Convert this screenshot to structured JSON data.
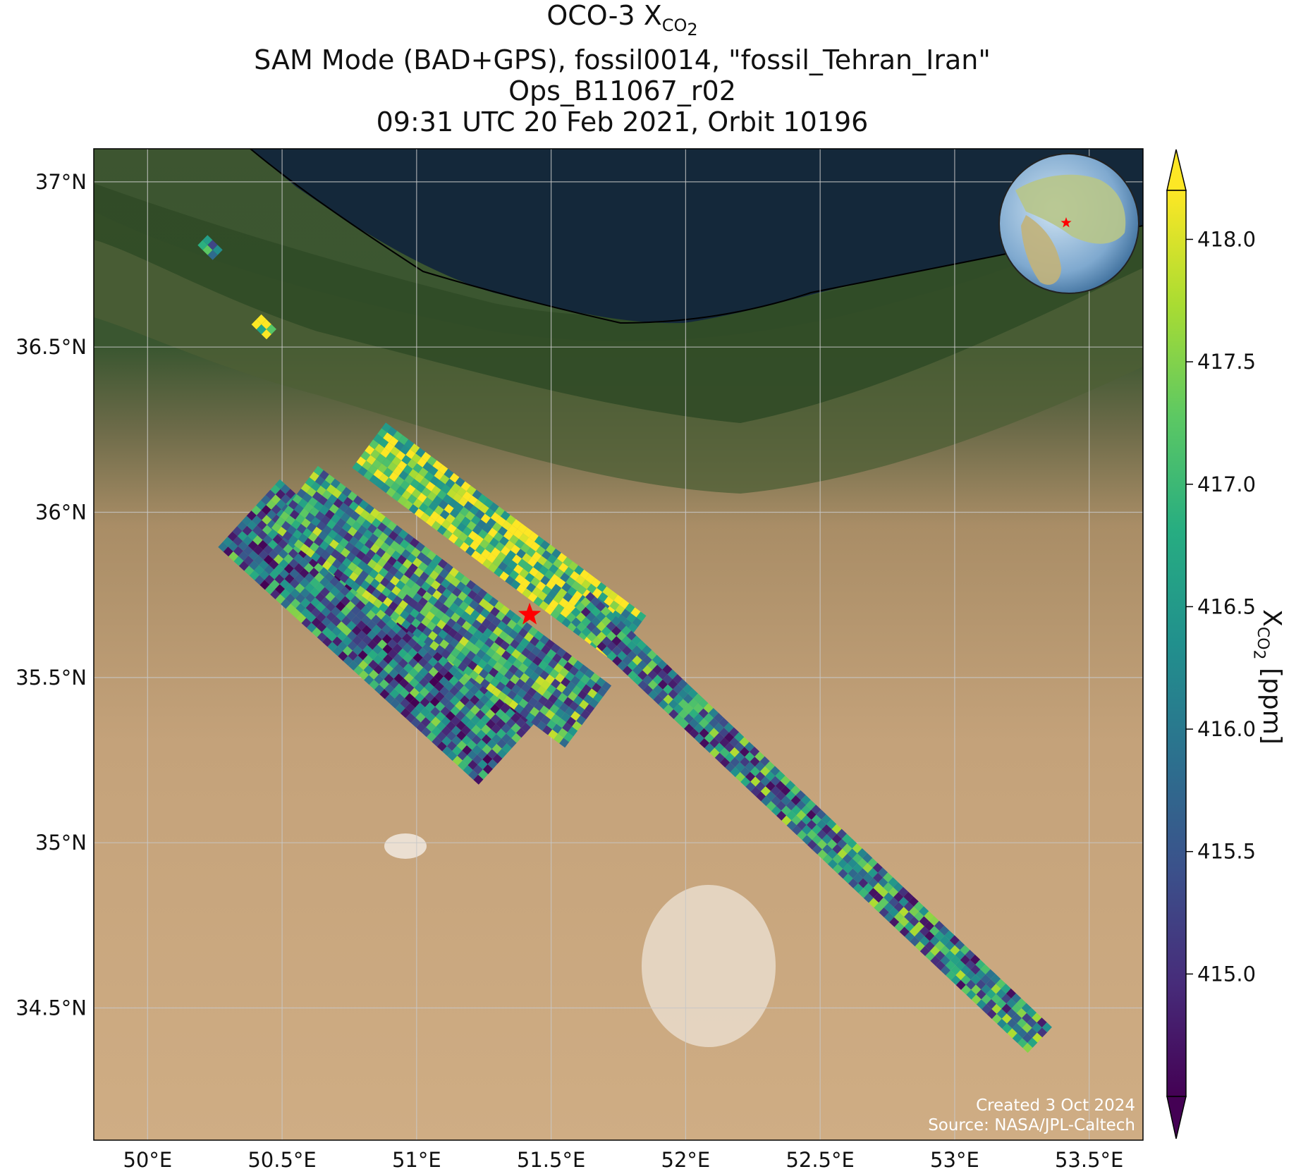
{
  "title": {
    "line1_main": "OCO-3 X",
    "line1_sub": "CO",
    "line1_subsub": "2",
    "line2": "SAM Mode (BAD+GPS), fossil0014, \"fossil_Tehran_Iran\"",
    "line3": "Ops_B11067_r02",
    "line4": "09:31 UTC 20 Feb 2021, Orbit 10196"
  },
  "map": {
    "lon_range": [
      49.8,
      53.7
    ],
    "lat_range": [
      34.1,
      37.1
    ],
    "lon_ticks": [
      {
        "value": 50.0,
        "label": "50°E"
      },
      {
        "value": 50.5,
        "label": "50.5°E"
      },
      {
        "value": 51.0,
        "label": "51°E"
      },
      {
        "value": 51.5,
        "label": "51.5°E"
      },
      {
        "value": 52.0,
        "label": "52°E"
      },
      {
        "value": 52.5,
        "label": "52.5°E"
      },
      {
        "value": 53.0,
        "label": "53°E"
      },
      {
        "value": 53.5,
        "label": "53.5°E"
      }
    ],
    "lat_ticks": [
      {
        "value": 37.0,
        "label": "37°N"
      },
      {
        "value": 36.5,
        "label": "36.5°N"
      },
      {
        "value": 36.0,
        "label": "36°N"
      },
      {
        "value": 35.5,
        "label": "35.5°N"
      },
      {
        "value": 35.0,
        "label": "35°N"
      },
      {
        "value": 34.5,
        "label": "34.5°N"
      }
    ],
    "target": {
      "lon": 51.42,
      "lat": 35.69,
      "color": "#ff0000"
    },
    "colors": {
      "sea": "#14283a",
      "coast_green": "#2f4a2a",
      "forest": "#36512e",
      "desert": "#c8a57c",
      "salt_flat": "#e9dccb",
      "grid": "#c8c8c8"
    },
    "credit_line1": "Created 3 Oct 2024",
    "credit_line2": "Source: NASA/JPL-Caltech"
  },
  "colorbar": {
    "min": 414.5,
    "max": 418.2,
    "extend": "both",
    "ticks": [
      {
        "value": 415.0,
        "label": "415.0"
      },
      {
        "value": 415.5,
        "label": "415.5"
      },
      {
        "value": 416.0,
        "label": "416.0"
      },
      {
        "value": 416.5,
        "label": "416.5"
      },
      {
        "value": 417.0,
        "label": "417.0"
      },
      {
        "value": 417.5,
        "label": "417.5"
      },
      {
        "value": 418.0,
        "label": "418.0"
      }
    ],
    "label_main": "X",
    "label_sub": "CO",
    "label_subsub": "2",
    "label_unit": " [ppm]",
    "colormap": "viridis"
  },
  "chart_data": {
    "type": "heatmap",
    "variable": "XCO2",
    "units": "ppm",
    "swaths": [
      {
        "lon_start": 50.38,
        "lat_start": 36.0,
        "lon_end": 51.35,
        "lat_end": 35.28,
        "width_deg": 0.35,
        "mean": 416.0
      },
      {
        "lon_start": 50.55,
        "lat_start": 36.05,
        "lon_end": 51.65,
        "lat_end": 35.38,
        "width_deg": 0.3,
        "mean": 416.4
      },
      {
        "lon_start": 50.82,
        "lat_start": 36.2,
        "lon_end": 51.78,
        "lat_end": 35.62,
        "width_deg": 0.2,
        "mean": 417.5
      },
      {
        "lon_start": 51.6,
        "lat_start": 35.72,
        "lon_end": 53.32,
        "lat_end": 34.4,
        "width_deg": 0.13,
        "mean": 416.2
      },
      {
        "lon_start": 50.2,
        "lat_start": 36.82,
        "lon_end": 50.25,
        "lat_end": 36.78,
        "width_deg": 0.04,
        "mean": 416.8
      },
      {
        "lon_start": 50.4,
        "lat_start": 36.58,
        "lon_end": 50.45,
        "lat_end": 36.54,
        "width_deg": 0.04,
        "mean": 418.0
      }
    ]
  }
}
